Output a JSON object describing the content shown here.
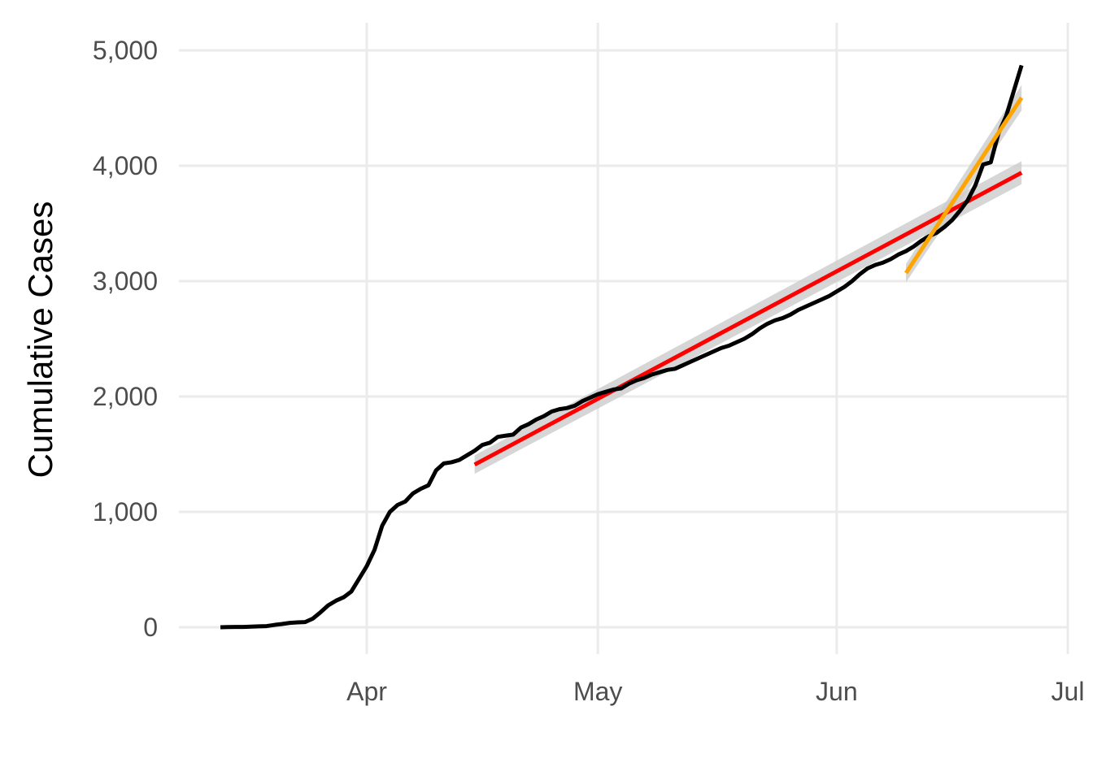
{
  "chart_data": {
    "type": "line",
    "title": "",
    "xlabel": "",
    "ylabel": "Cumulative Cases",
    "x_ticks": [
      "Apr",
      "May",
      "Jun",
      "Jul"
    ],
    "x_tick_dates": [
      "2020-04-01",
      "2020-05-01",
      "2020-06-01",
      "2020-07-01"
    ],
    "y_ticks": [
      "0",
      "1,000",
      "2,000",
      "3,000",
      "4,000",
      "5,000"
    ],
    "y_tick_values": [
      0,
      1000,
      2000,
      3000,
      4000,
      5000
    ],
    "xlim": [
      "2020-03-12",
      "2020-07-01"
    ],
    "ylim": [
      -300,
      5200
    ],
    "grid": true,
    "legend": "none",
    "series": [
      {
        "color": "#000000",
        "style": "line",
        "points": [
          [
            "2020-03-13",
            0
          ],
          [
            "2020-03-14",
            2
          ],
          [
            "2020-03-15",
            3
          ],
          [
            "2020-03-16",
            3
          ],
          [
            "2020-03-17",
            5
          ],
          [
            "2020-03-18",
            8
          ],
          [
            "2020-03-19",
            10
          ],
          [
            "2020-03-20",
            20
          ],
          [
            "2020-03-21",
            28
          ],
          [
            "2020-03-22",
            38
          ],
          [
            "2020-03-23",
            42
          ],
          [
            "2020-03-24",
            45
          ],
          [
            "2020-03-25",
            75
          ],
          [
            "2020-03-26",
            130
          ],
          [
            "2020-03-27",
            190
          ],
          [
            "2020-03-28",
            230
          ],
          [
            "2020-03-29",
            260
          ],
          [
            "2020-03-30",
            310
          ],
          [
            "2020-03-31",
            420
          ],
          [
            "2020-04-01",
            530
          ],
          [
            "2020-04-02",
            670
          ],
          [
            "2020-04-03",
            880
          ],
          [
            "2020-04-04",
            1000
          ],
          [
            "2020-04-05",
            1060
          ],
          [
            "2020-04-06",
            1090
          ],
          [
            "2020-04-07",
            1160
          ],
          [
            "2020-04-08",
            1200
          ],
          [
            "2020-04-09",
            1230
          ],
          [
            "2020-04-10",
            1360
          ],
          [
            "2020-04-11",
            1420
          ],
          [
            "2020-04-12",
            1430
          ],
          [
            "2020-04-13",
            1450
          ],
          [
            "2020-04-14",
            1490
          ],
          [
            "2020-04-15",
            1530
          ],
          [
            "2020-04-16",
            1580
          ],
          [
            "2020-04-17",
            1600
          ],
          [
            "2020-04-18",
            1650
          ],
          [
            "2020-04-19",
            1660
          ],
          [
            "2020-04-20",
            1670
          ],
          [
            "2020-04-21",
            1730
          ],
          [
            "2020-04-22",
            1760
          ],
          [
            "2020-04-23",
            1800
          ],
          [
            "2020-04-24",
            1830
          ],
          [
            "2020-04-25",
            1870
          ],
          [
            "2020-04-26",
            1890
          ],
          [
            "2020-04-27",
            1900
          ],
          [
            "2020-04-28",
            1920
          ],
          [
            "2020-04-29",
            1960
          ],
          [
            "2020-04-30",
            1990
          ],
          [
            "2020-05-01",
            2020
          ],
          [
            "2020-05-02",
            2040
          ],
          [
            "2020-05-03",
            2060
          ],
          [
            "2020-05-04",
            2070
          ],
          [
            "2020-05-05",
            2110
          ],
          [
            "2020-05-06",
            2140
          ],
          [
            "2020-05-07",
            2160
          ],
          [
            "2020-05-08",
            2190
          ],
          [
            "2020-05-09",
            2210
          ],
          [
            "2020-05-10",
            2230
          ],
          [
            "2020-05-11",
            2240
          ],
          [
            "2020-05-12",
            2270
          ],
          [
            "2020-05-13",
            2300
          ],
          [
            "2020-05-14",
            2330
          ],
          [
            "2020-05-15",
            2360
          ],
          [
            "2020-05-16",
            2390
          ],
          [
            "2020-05-17",
            2420
          ],
          [
            "2020-05-18",
            2440
          ],
          [
            "2020-05-19",
            2470
          ],
          [
            "2020-05-20",
            2500
          ],
          [
            "2020-05-21",
            2540
          ],
          [
            "2020-05-22",
            2590
          ],
          [
            "2020-05-23",
            2630
          ],
          [
            "2020-05-24",
            2660
          ],
          [
            "2020-05-25",
            2680
          ],
          [
            "2020-05-26",
            2710
          ],
          [
            "2020-05-27",
            2750
          ],
          [
            "2020-05-28",
            2780
          ],
          [
            "2020-05-29",
            2810
          ],
          [
            "2020-05-30",
            2840
          ],
          [
            "2020-05-31",
            2870
          ],
          [
            "2020-06-01",
            2910
          ],
          [
            "2020-06-02",
            2950
          ],
          [
            "2020-06-03",
            3000
          ],
          [
            "2020-06-04",
            3060
          ],
          [
            "2020-06-05",
            3110
          ],
          [
            "2020-06-06",
            3140
          ],
          [
            "2020-06-07",
            3160
          ],
          [
            "2020-06-08",
            3190
          ],
          [
            "2020-06-09",
            3230
          ],
          [
            "2020-06-10",
            3260
          ],
          [
            "2020-06-11",
            3300
          ],
          [
            "2020-06-12",
            3350
          ],
          [
            "2020-06-13",
            3390
          ],
          [
            "2020-06-14",
            3420
          ],
          [
            "2020-06-15",
            3470
          ],
          [
            "2020-06-16",
            3530
          ],
          [
            "2020-06-17",
            3610
          ],
          [
            "2020-06-18",
            3700
          ],
          [
            "2020-06-19",
            3830
          ],
          [
            "2020-06-20",
            4010
          ],
          [
            "2020-06-21",
            4030
          ],
          [
            "2020-06-22",
            4280
          ],
          [
            "2020-06-23",
            4430
          ],
          [
            "2020-06-24",
            4650
          ],
          [
            "2020-06-25",
            4870
          ]
        ]
      },
      {
        "color": "#ff0000",
        "style": "fit",
        "band_color": "#cccccc",
        "points": [
          [
            "2020-04-15",
            1410
          ],
          [
            "2020-06-25",
            3940
          ]
        ],
        "band": [
          [
            "2020-04-15",
            1330,
            1490
          ],
          [
            "2020-06-25",
            3840,
            4040
          ]
        ]
      },
      {
        "color": "#ffa500",
        "style": "fit",
        "band_color": "#cccccc",
        "points": [
          [
            "2020-06-10",
            3070
          ],
          [
            "2020-06-25",
            4590
          ]
        ],
        "band": [
          [
            "2020-06-10",
            2990,
            3150
          ],
          [
            "2020-06-25",
            4480,
            4700
          ]
        ]
      }
    ]
  }
}
